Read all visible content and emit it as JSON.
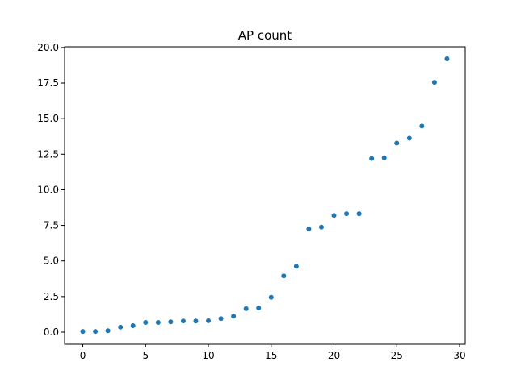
{
  "chart_data": {
    "type": "scatter",
    "title": "AP count",
    "xlabel": "",
    "ylabel": "",
    "xlim": [
      -1.45,
      30.45
    ],
    "ylim": [
      -0.85,
      20.05
    ],
    "grid": false,
    "legend": "none",
    "color": "#1f77b4",
    "xticks": [
      0,
      5,
      10,
      15,
      20,
      25,
      30
    ],
    "xtick_labels": [
      "0",
      "5",
      "10",
      "15",
      "20",
      "25",
      "30"
    ],
    "yticks": [
      0,
      2.5,
      5,
      7.5,
      10,
      12.5,
      15,
      17.5,
      20
    ],
    "ytick_labels": [
      "0.0",
      "2.5",
      "5.0",
      "7.5",
      "10.0",
      "12.5",
      "15.0",
      "17.5",
      "20.0"
    ],
    "series": [
      {
        "x": [
          0,
          1,
          2,
          3,
          4,
          5,
          6,
          7,
          8,
          9,
          10,
          11,
          12,
          13,
          14,
          15,
          16,
          17,
          18,
          19,
          20,
          21,
          22,
          23,
          24,
          25,
          26,
          27,
          28,
          29
        ],
        "y": [
          0.05,
          0.05,
          0.1,
          0.35,
          0.45,
          0.68,
          0.68,
          0.72,
          0.78,
          0.78,
          0.8,
          0.95,
          1.12,
          1.65,
          1.7,
          2.45,
          3.95,
          4.62,
          7.25,
          7.38,
          8.2,
          8.32,
          8.32,
          12.2,
          12.25,
          13.28,
          13.62,
          14.48,
          17.55,
          19.2
        ]
      }
    ]
  }
}
